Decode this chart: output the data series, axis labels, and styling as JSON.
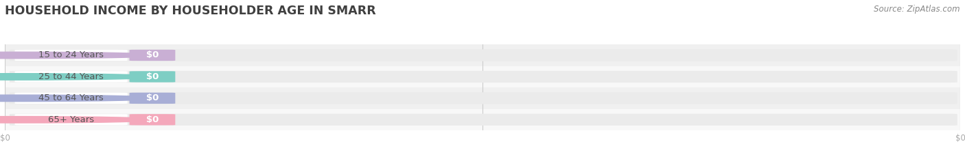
{
  "title": "HOUSEHOLD INCOME BY HOUSEHOLDER AGE IN SMARR",
  "source_text": "Source: ZipAtlas.com",
  "categories": [
    "15 to 24 Years",
    "25 to 44 Years",
    "45 to 64 Years",
    "65+ Years"
  ],
  "values": [
    0,
    0,
    0,
    0
  ],
  "bar_colors": [
    "#c9afd4",
    "#7ecec4",
    "#a8aed6",
    "#f4a8bb"
  ],
  "background_color": "#ffffff",
  "bar_bg_color": "#ebebeb",
  "row_alt_color": "#f5f5f5",
  "title_color": "#404040",
  "label_text_color": "#555555",
  "value_text_color": "#ffffff",
  "tick_color": "#aaaaaa",
  "grid_color": "#cccccc",
  "bar_height": 0.55,
  "title_fontsize": 12.5,
  "label_fontsize": 9.5,
  "tick_fontsize": 8.5,
  "source_fontsize": 8.5,
  "xlim_left": 0,
  "xlim_right": 1
}
